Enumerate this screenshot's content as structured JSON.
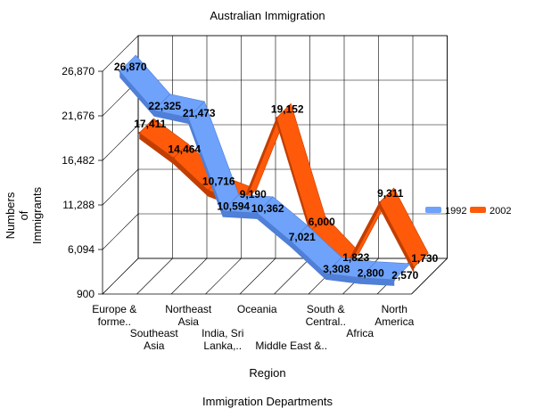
{
  "chart_data": {
    "type": "line",
    "title": "Australian Immigration",
    "xlabel": "Region",
    "ylabel": "Numbers of Immigrants",
    "footer": "Immigration Departments",
    "categories": [
      "Europe & forme..",
      "Southeast Asia",
      "Northeast Asia",
      "India, Sri Lanka,..",
      "Oceania",
      "Middle East &..",
      "South & Central..",
      "Africa",
      "North America"
    ],
    "series": [
      {
        "name": "1992",
        "color": "#6ea2fb",
        "values": [
          26870,
          22325,
          21473,
          10594,
          10362,
          7021,
          3308,
          2800,
          2570
        ],
        "labels": [
          "26,870",
          "22,325",
          "21,473",
          "10,594",
          "10,362",
          "7,021",
          "3,308",
          "2,800",
          "2,570"
        ]
      },
      {
        "name": "2002",
        "color": "#ff5a0a",
        "values": [
          17411,
          14464,
          10716,
          9190,
          19152,
          6000,
          1823,
          9311,
          1730
        ],
        "labels": [
          "17,411",
          "14,464",
          "10,716",
          "9,190",
          "19,152",
          "6,000",
          "1,823",
          "9,311",
          "1,730"
        ]
      }
    ],
    "y_ticks": [
      "900",
      "6,094",
      "11,288",
      "16,482",
      "21,676",
      "26,870"
    ],
    "ylim": [
      900,
      26870
    ],
    "grid": true,
    "legend_position": "right"
  }
}
